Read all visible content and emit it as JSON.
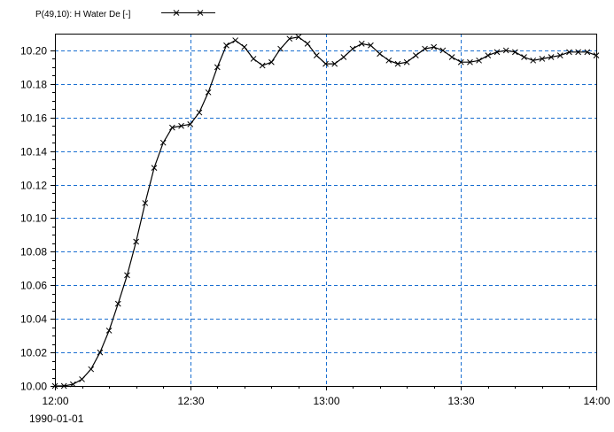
{
  "chart_data": {
    "type": "line",
    "title": "",
    "xlabel": "",
    "ylabel": "",
    "legend": {
      "position": "top-left"
    },
    "grid": true,
    "grid_color": "#1a6fd1",
    "line_color": "#000000",
    "marker": "x",
    "x_date_label": "1990-01-01",
    "x_ticks": [
      "12:00",
      "12:30",
      "13:00",
      "13:30",
      "14:00"
    ],
    "xlim": [
      "12:00",
      "14:00"
    ],
    "y_ticks": [
      "10.00",
      "10.02",
      "10.04",
      "10.06",
      "10.08",
      "10.10",
      "10.12",
      "10.14",
      "10.16",
      "10.18",
      "10.20"
    ],
    "ylim": [
      10.0,
      10.21
    ],
    "series": [
      {
        "name": "P(49,10): H Water De [-]",
        "x": [
          "12:00",
          "12:02",
          "12:04",
          "12:06",
          "12:08",
          "12:10",
          "12:12",
          "12:14",
          "12:16",
          "12:18",
          "12:20",
          "12:22",
          "12:24",
          "12:26",
          "12:28",
          "12:30",
          "12:32",
          "12:34",
          "12:36",
          "12:38",
          "12:40",
          "12:42",
          "12:44",
          "12:46",
          "12:48",
          "12:50",
          "12:52",
          "12:54",
          "12:56",
          "12:58",
          "13:00",
          "13:02",
          "13:04",
          "13:06",
          "13:08",
          "13:10",
          "13:12",
          "13:14",
          "13:16",
          "13:18",
          "13:20",
          "13:22",
          "13:24",
          "13:26",
          "13:28",
          "13:30",
          "13:32",
          "13:34",
          "13:36",
          "13:38",
          "13:40",
          "13:42",
          "13:44",
          "13:46",
          "13:48",
          "13:50",
          "13:52",
          "13:54",
          "13:56",
          "13:58",
          "14:00"
        ],
        "values": [
          10.0,
          10.0,
          10.001,
          10.004,
          10.01,
          10.02,
          10.033,
          10.049,
          10.066,
          10.086,
          10.109,
          10.13,
          10.145,
          10.154,
          10.155,
          10.156,
          10.163,
          10.175,
          10.19,
          10.203,
          10.206,
          10.202,
          10.195,
          10.191,
          10.193,
          10.201,
          10.207,
          10.208,
          10.204,
          10.197,
          10.192,
          10.192,
          10.196,
          10.201,
          10.204,
          10.203,
          10.198,
          10.194,
          10.192,
          10.193,
          10.197,
          10.201,
          10.202,
          10.2,
          10.196,
          10.193,
          10.193,
          10.194,
          10.197,
          10.199,
          10.2,
          10.199,
          10.196,
          10.194,
          10.195,
          10.196,
          10.197,
          10.199,
          10.199,
          10.199,
          10.197
        ]
      }
    ]
  }
}
